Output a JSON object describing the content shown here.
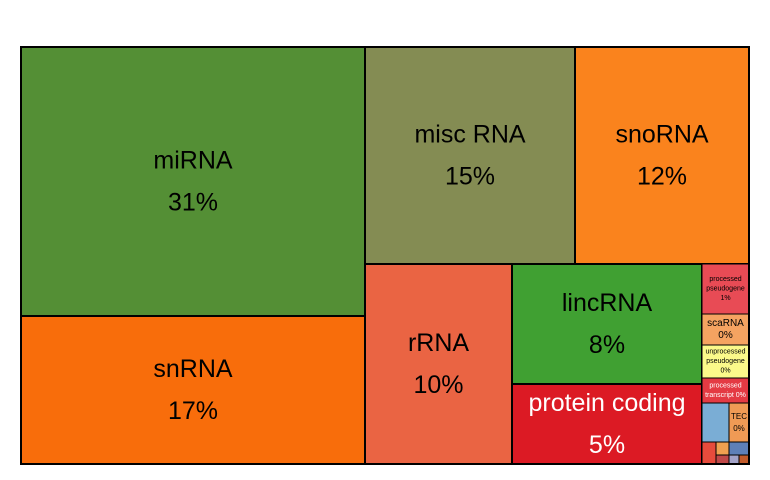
{
  "chart_data": {
    "type": "treemap",
    "unit": "%",
    "tiles": [
      {
        "name": "miRNA",
        "lines": [
          "miRNA"
        ],
        "value_label": "31%",
        "value": 31,
        "color": "#548f35",
        "text_color": "#000000"
      },
      {
        "name": "snRNA",
        "lines": [
          "snRNA"
        ],
        "value_label": "17%",
        "value": 17,
        "color": "#f86d0b",
        "text_color": "#000000"
      },
      {
        "name": "misc RNA",
        "lines": [
          "misc RNA"
        ],
        "value_label": "15%",
        "value": 15,
        "color": "#848c53",
        "text_color": "#000000"
      },
      {
        "name": "snoRNA",
        "lines": [
          "snoRNA"
        ],
        "value_label": "12%",
        "value": 12,
        "color": "#fa831d",
        "text_color": "#000000"
      },
      {
        "name": "rRNA",
        "lines": [
          "rRNA"
        ],
        "value_label": "10%",
        "value": 10,
        "color": "#ea6443",
        "text_color": "#000000"
      },
      {
        "name": "lincRNA",
        "lines": [
          "lincRNA"
        ],
        "value_label": "8%",
        "value": 8,
        "color": "#40a032",
        "text_color": "#000000"
      },
      {
        "name": "protein coding",
        "lines": [
          "protein coding"
        ],
        "value_label": "5%",
        "value": 5,
        "color": "#dc1a24",
        "text_color": "#ffffff"
      },
      {
        "name": "processed pseudogene",
        "lines": [
          "processed",
          "pseudogene"
        ],
        "value_label": "1%",
        "value": 1,
        "color": "#e84b55",
        "text_color": "#000000"
      },
      {
        "name": "scaRNA",
        "lines": [
          "scaRNA"
        ],
        "value_label": "0%",
        "value": 0,
        "color": "#f5a361",
        "text_color": "#000000"
      },
      {
        "name": "unprocessed pseudogene",
        "lines": [
          "unprocessed",
          "pseudogene"
        ],
        "value_label": "0%",
        "value": 0,
        "color": "#fbf98a",
        "text_color": "#000000"
      },
      {
        "name": "processed transcript",
        "lines": [
          "processed",
          "transcript 0%"
        ],
        "value_label": "",
        "value": 0,
        "color": "#e43a43",
        "text_color": "#ffffff"
      },
      {
        "name": "TEC",
        "lines": [
          "TEC"
        ],
        "value_label": "0%",
        "value": 0,
        "color": "#ef9a55",
        "text_color": "#000000"
      }
    ],
    "minor_tile_colors": [
      "#7aadd5",
      "#e64b3c",
      "#f0a050",
      "#c04848",
      "#5e80b8",
      "#a3a3c8",
      "#c25b2b"
    ]
  }
}
